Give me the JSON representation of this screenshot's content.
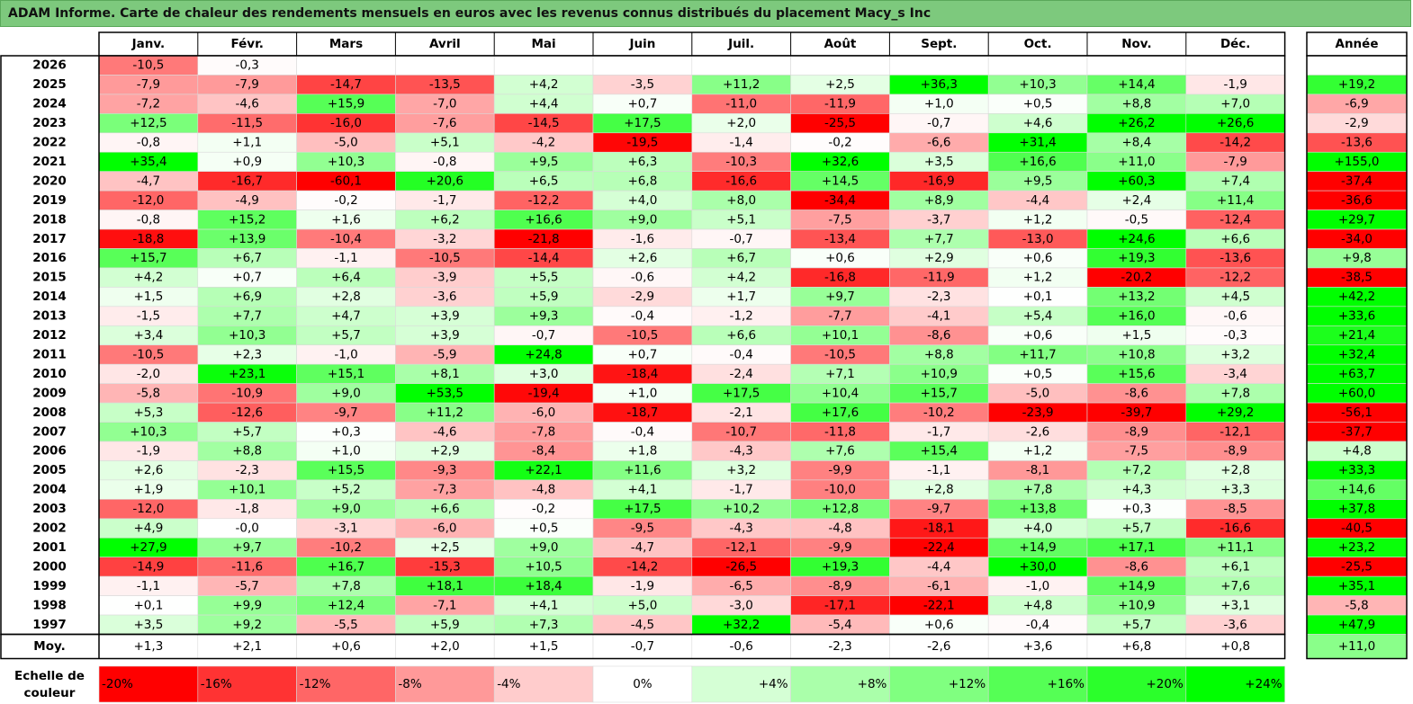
{
  "title": "ADAM Informe. Carte de chaleur des rendements mensuels en euros avec les revenus connus distribués du placement Macy_s Inc",
  "colors": {
    "title_bg": "#7dc97d",
    "negative": "#ff0000",
    "neutral": "#ffffff",
    "positive": "#00ff00"
  },
  "chart_data": {
    "type": "heatmap",
    "months": [
      "Janv.",
      "Févr.",
      "Mars",
      "Avril",
      "Mai",
      "Juin",
      "Juil.",
      "Août",
      "Sept.",
      "Oct.",
      "Nov.",
      "Déc."
    ],
    "year_header": "Année",
    "average_label": "Moy.",
    "rows": [
      {
        "year": "2026",
        "months": [
          "-10,5",
          "-0,3",
          "",
          "",
          "",
          "",
          "",
          "",
          "",
          "",
          "",
          ""
        ],
        "annual": ""
      },
      {
        "year": "2025",
        "months": [
          "-7,9",
          "-7,9",
          "-14,7",
          "-13,5",
          "+4,2",
          "-3,5",
          "+11,2",
          "+2,5",
          "+36,3",
          "+10,3",
          "+14,4",
          "-1,9"
        ],
        "annual": "+19,2"
      },
      {
        "year": "2024",
        "months": [
          "-7,2",
          "-4,6",
          "+15,9",
          "-7,0",
          "+4,4",
          "+0,7",
          "-11,0",
          "-11,9",
          "+1,0",
          "+0,5",
          "+8,8",
          "+7,0"
        ],
        "annual": "-6,9"
      },
      {
        "year": "2023",
        "months": [
          "+12,5",
          "-11,5",
          "-16,0",
          "-7,6",
          "-14,5",
          "+17,5",
          "+2,0",
          "-25,5",
          "-0,7",
          "+4,6",
          "+26,2",
          "+26,6"
        ],
        "annual": "-2,9"
      },
      {
        "year": "2022",
        "months": [
          "-0,8",
          "+1,1",
          "-5,0",
          "+5,1",
          "-4,2",
          "-19,5",
          "-1,4",
          "-0,2",
          "-6,6",
          "+31,4",
          "+8,4",
          "-14,2"
        ],
        "annual": "-13,6"
      },
      {
        "year": "2021",
        "months": [
          "+35,4",
          "+0,9",
          "+10,3",
          "-0,8",
          "+9,5",
          "+6,3",
          "-10,3",
          "+32,6",
          "+3,5",
          "+16,6",
          "+11,0",
          "-7,9"
        ],
        "annual": "+155,0"
      },
      {
        "year": "2020",
        "months": [
          "-4,7",
          "-16,7",
          "-60,1",
          "+20,6",
          "+6,5",
          "+6,8",
          "-16,6",
          "+14,5",
          "-16,9",
          "+9,5",
          "+60,3",
          "+7,4"
        ],
        "annual": "-37,4"
      },
      {
        "year": "2019",
        "months": [
          "-12,0",
          "-4,9",
          "-0,2",
          "-1,7",
          "-12,2",
          "+4,0",
          "+8,0",
          "-34,4",
          "+8,9",
          "-4,4",
          "+2,4",
          "+11,4"
        ],
        "annual": "-36,6"
      },
      {
        "year": "2018",
        "months": [
          "-0,8",
          "+15,2",
          "+1,6",
          "+6,2",
          "+16,6",
          "+9,0",
          "+5,1",
          "-7,5",
          "-3,7",
          "+1,2",
          "-0,5",
          "-12,4"
        ],
        "annual": "+29,7"
      },
      {
        "year": "2017",
        "months": [
          "-18,8",
          "+13,9",
          "-10,4",
          "-3,2",
          "-21,8",
          "-1,6",
          "-0,7",
          "-13,4",
          "+7,7",
          "-13,0",
          "+24,6",
          "+6,6"
        ],
        "annual": "-34,0"
      },
      {
        "year": "2016",
        "months": [
          "+15,7",
          "+6,7",
          "-1,1",
          "-10,5",
          "-14,4",
          "+2,6",
          "+6,7",
          "+0,6",
          "+2,9",
          "+0,6",
          "+19,3",
          "-13,6"
        ],
        "annual": "+9,8"
      },
      {
        "year": "2015",
        "months": [
          "+4,2",
          "+0,7",
          "+6,4",
          "-3,9",
          "+5,5",
          "-0,6",
          "+4,2",
          "-16,8",
          "-11,9",
          "+1,2",
          "-20,2",
          "-12,2"
        ],
        "annual": "-38,5"
      },
      {
        "year": "2014",
        "months": [
          "+1,5",
          "+6,9",
          "+2,8",
          "-3,6",
          "+5,9",
          "-2,9",
          "+1,7",
          "+9,7",
          "-2,3",
          "+0,1",
          "+13,2",
          "+4,5"
        ],
        "annual": "+42,2"
      },
      {
        "year": "2013",
        "months": [
          "-1,5",
          "+7,7",
          "+4,7",
          "+3,9",
          "+9,3",
          "-0,4",
          "-1,2",
          "-7,7",
          "-4,1",
          "+5,4",
          "+16,0",
          "-0,6"
        ],
        "annual": "+33,6"
      },
      {
        "year": "2012",
        "months": [
          "+3,4",
          "+10,3",
          "+5,7",
          "+3,9",
          "-0,7",
          "-10,5",
          "+6,6",
          "+10,1",
          "-8,6",
          "+0,6",
          "+1,5",
          "-0,3"
        ],
        "annual": "+21,4"
      },
      {
        "year": "2011",
        "months": [
          "-10,5",
          "+2,3",
          "-1,0",
          "-5,9",
          "+24,8",
          "+0,7",
          "-0,4",
          "-10,5",
          "+8,8",
          "+11,7",
          "+10,8",
          "+3,2"
        ],
        "annual": "+32,4"
      },
      {
        "year": "2010",
        "months": [
          "-2,0",
          "+23,1",
          "+15,1",
          "+8,1",
          "+3,0",
          "-18,4",
          "-2,4",
          "+7,1",
          "+10,9",
          "+0,5",
          "+15,6",
          "-3,4"
        ],
        "annual": "+63,7"
      },
      {
        "year": "2009",
        "months": [
          "-5,8",
          "-10,9",
          "+9,0",
          "+53,5",
          "-19,4",
          "+1,0",
          "+17,5",
          "+10,4",
          "+15,7",
          "-5,0",
          "-8,6",
          "+7,8"
        ],
        "annual": "+60,0"
      },
      {
        "year": "2008",
        "months": [
          "+5,3",
          "-12,6",
          "-9,7",
          "+11,2",
          "-6,0",
          "-18,7",
          "-2,1",
          "+17,6",
          "-10,2",
          "-23,9",
          "-39,7",
          "+29,2"
        ],
        "annual": "-56,1"
      },
      {
        "year": "2007",
        "months": [
          "+10,3",
          "+5,7",
          "+0,3",
          "-4,6",
          "-7,8",
          "-0,4",
          "-10,7",
          "-11,8",
          "-1,7",
          "-2,6",
          "-8,9",
          "-12,1"
        ],
        "annual": "-37,7"
      },
      {
        "year": "2006",
        "months": [
          "-1,9",
          "+8,8",
          "+1,0",
          "+2,9",
          "-8,4",
          "+1,8",
          "-4,3",
          "+7,6",
          "+15,4",
          "+1,2",
          "-7,5",
          "-8,9"
        ],
        "annual": "+4,8"
      },
      {
        "year": "2005",
        "months": [
          "+2,6",
          "-2,3",
          "+15,5",
          "-9,3",
          "+22,1",
          "+11,6",
          "+3,2",
          "-9,9",
          "-1,1",
          "-8,1",
          "+7,2",
          "+2,8"
        ],
        "annual": "+33,3"
      },
      {
        "year": "2004",
        "months": [
          "+1,9",
          "+10,1",
          "+5,2",
          "-7,3",
          "-4,8",
          "+4,1",
          "-1,7",
          "-10,0",
          "+2,8",
          "+7,8",
          "+4,3",
          "+3,3"
        ],
        "annual": "+14,6"
      },
      {
        "year": "2003",
        "months": [
          "-12,0",
          "-1,8",
          "+9,0",
          "+6,6",
          "-0,2",
          "+17,5",
          "+10,2",
          "+12,8",
          "-9,7",
          "+13,8",
          "+0,3",
          "-8,5"
        ],
        "annual": "+37,8"
      },
      {
        "year": "2002",
        "months": [
          "+4,9",
          "-0,0",
          "-3,1",
          "-6,0",
          "+0,5",
          "-9,5",
          "-4,3",
          "-4,8",
          "-18,1",
          "+4,0",
          "+5,7",
          "-16,6"
        ],
        "annual": "-40,5"
      },
      {
        "year": "2001",
        "months": [
          "+27,9",
          "+9,7",
          "-10,2",
          "+2,5",
          "+9,0",
          "-4,7",
          "-12,1",
          "-9,9",
          "-22,4",
          "+14,9",
          "+17,1",
          "+11,1"
        ],
        "annual": "+23,2"
      },
      {
        "year": "2000",
        "months": [
          "-14,9",
          "-11,6",
          "+16,7",
          "-15,3",
          "+10,5",
          "-14,2",
          "-26,5",
          "+19,3",
          "-4,4",
          "+30,0",
          "-8,6",
          "+6,1"
        ],
        "annual": "-25,5"
      },
      {
        "year": "1999",
        "months": [
          "-1,1",
          "-5,7",
          "+7,8",
          "+18,1",
          "+18,4",
          "-1,9",
          "-6,5",
          "-8,9",
          "-6,1",
          "-1,0",
          "+14,9",
          "+7,6"
        ],
        "annual": "+35,1"
      },
      {
        "year": "1998",
        "months": [
          "+0,1",
          "+9,9",
          "+12,4",
          "-7,1",
          "+4,1",
          "+5,0",
          "-3,0",
          "-17,1",
          "-22,1",
          "+4,8",
          "+10,9",
          "+3,1"
        ],
        "annual": "-5,8"
      },
      {
        "year": "1997",
        "months": [
          "+3,5",
          "+9,2",
          "-5,5",
          "+5,9",
          "+7,3",
          "-4,5",
          "+32,2",
          "-5,4",
          "+0,6",
          "-0,4",
          "+5,7",
          "-3,6"
        ],
        "annual": "+47,9"
      }
    ],
    "average": {
      "months": [
        "+1,3",
        "+2,1",
        "+0,6",
        "+2,0",
        "+1,5",
        "-0,7",
        "-0,6",
        "-2,3",
        "-2,6",
        "+3,6",
        "+6,8",
        "+0,8"
      ],
      "annual": "+11,0"
    },
    "scale": {
      "label_line1": "Echelle de",
      "label_line2": "couleur",
      "steps": [
        "-20%",
        "-16%",
        "-12%",
        "-8%",
        "-4%",
        "0%",
        "+4%",
        "+8%",
        "+12%",
        "+16%",
        "+20%",
        "+24%"
      ],
      "values": [
        -20,
        -16,
        -12,
        -8,
        -4,
        0,
        4,
        8,
        12,
        16,
        20,
        24
      ]
    }
  }
}
